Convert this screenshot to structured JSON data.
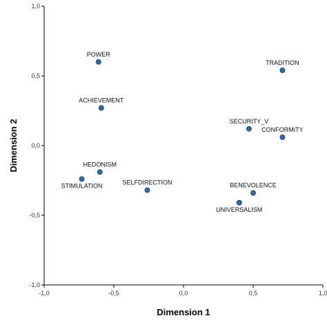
{
  "chart_data": {
    "type": "scatter",
    "xlabel": "Dimension 1",
    "ylabel": "Dimension 2",
    "xlim": [
      -1.0,
      1.0
    ],
    "ylim": [
      -1.0,
      1.0
    ],
    "x_ticks": [
      -1.0,
      -0.5,
      0.0,
      0.5,
      1.0
    ],
    "x_tick_labels": [
      "-1,0",
      "-0,5",
      "0,0",
      "0,5",
      "1,0"
    ],
    "y_ticks": [
      -1.0,
      -0.5,
      0.0,
      0.5,
      1.0
    ],
    "y_tick_labels": [
      "-1,0",
      "-0,5",
      "0,0",
      "0,5",
      "1,0"
    ],
    "grid": false,
    "points": [
      {
        "label": "POWER",
        "x": -0.61,
        "y": 0.6,
        "label_pos": "above"
      },
      {
        "label": "ACHIEVEMENT",
        "x": -0.59,
        "y": 0.27,
        "label_pos": "above"
      },
      {
        "label": "HEDONISM",
        "x": -0.6,
        "y": -0.19,
        "label_pos": "above"
      },
      {
        "label": "STIMULATION",
        "x": -0.73,
        "y": -0.24,
        "label_pos": "below"
      },
      {
        "label": "SELFDIRECTION",
        "x": -0.26,
        "y": -0.32,
        "label_pos": "above"
      },
      {
        "label": "TRADITION",
        "x": 0.71,
        "y": 0.54,
        "label_pos": "above"
      },
      {
        "label": "SECURITY_V",
        "x": 0.47,
        "y": 0.12,
        "label_pos": "above"
      },
      {
        "label": "CONFORMITY",
        "x": 0.71,
        "y": 0.06,
        "label_pos": "above"
      },
      {
        "label": "BENEVOLENCE",
        "x": 0.5,
        "y": -0.34,
        "label_pos": "above"
      },
      {
        "label": "UNIVERSALISM",
        "x": 0.4,
        "y": -0.41,
        "label_pos": "below"
      }
    ]
  }
}
